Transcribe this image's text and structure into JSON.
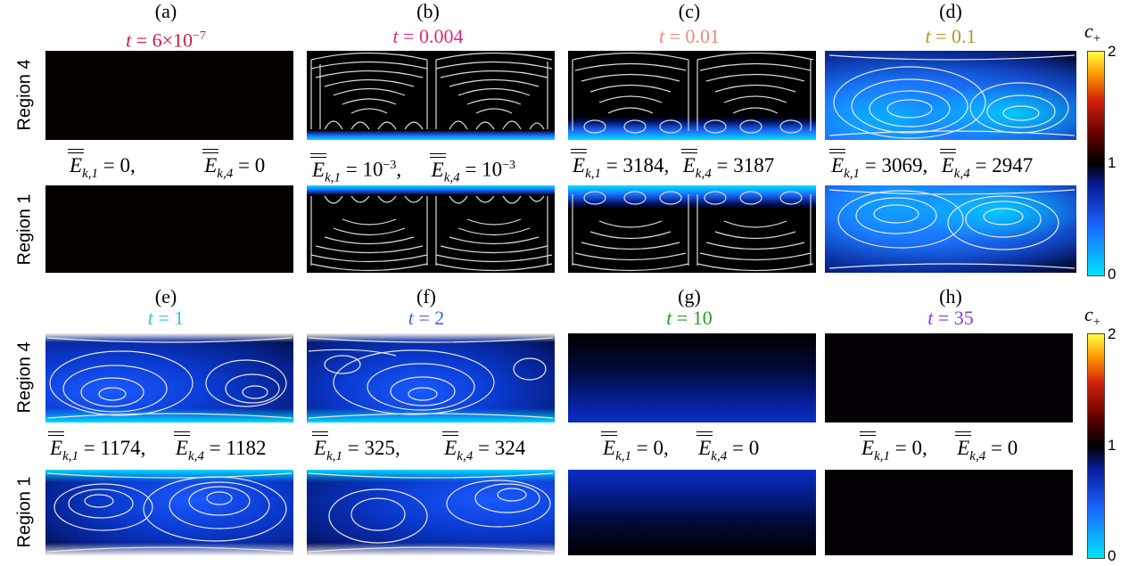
{
  "colors": {
    "a": "#c8203a",
    "b": "#e0287c",
    "c": "#f08878",
    "d": "#b8962a",
    "e": "#2cc8e0",
    "f": "#3a6ae8",
    "g": "#2a9a2a",
    "h": "#8a3ae0"
  },
  "panels": [
    {
      "letter": "(a)",
      "time": "6×10",
      "exp": "−7"
    },
    {
      "letter": "(b)",
      "time": "0.004"
    },
    {
      "letter": "(c)",
      "time": "0.01"
    },
    {
      "letter": "(d)",
      "time": "0.1"
    },
    {
      "letter": "(e)",
      "time": "1"
    },
    {
      "letter": "(f)",
      "time": "2"
    },
    {
      "letter": "(g)",
      "time": "10"
    },
    {
      "letter": "(h)",
      "time": "35"
    }
  ],
  "t_symbol": "t",
  "regions": {
    "top": "Region 4",
    "bottom": "Region 1"
  },
  "energy": {
    "symbol": "E",
    "sub1": "k,1",
    "sub4": "k,4",
    "a": [
      "0",
      "0"
    ],
    "b": [
      "10",
      "10"
    ],
    "b_exp": "−3",
    "c": [
      "3184",
      "3187"
    ],
    "d": [
      "3069",
      "2947"
    ],
    "e": [
      "1174",
      "1182"
    ],
    "f": [
      "325",
      "324"
    ],
    "g": [
      "0",
      "0"
    ],
    "h": [
      "0",
      "0"
    ]
  },
  "colorbar": {
    "label": "c",
    "sub": "+",
    "ticks": [
      "2",
      "1",
      "0"
    ]
  }
}
